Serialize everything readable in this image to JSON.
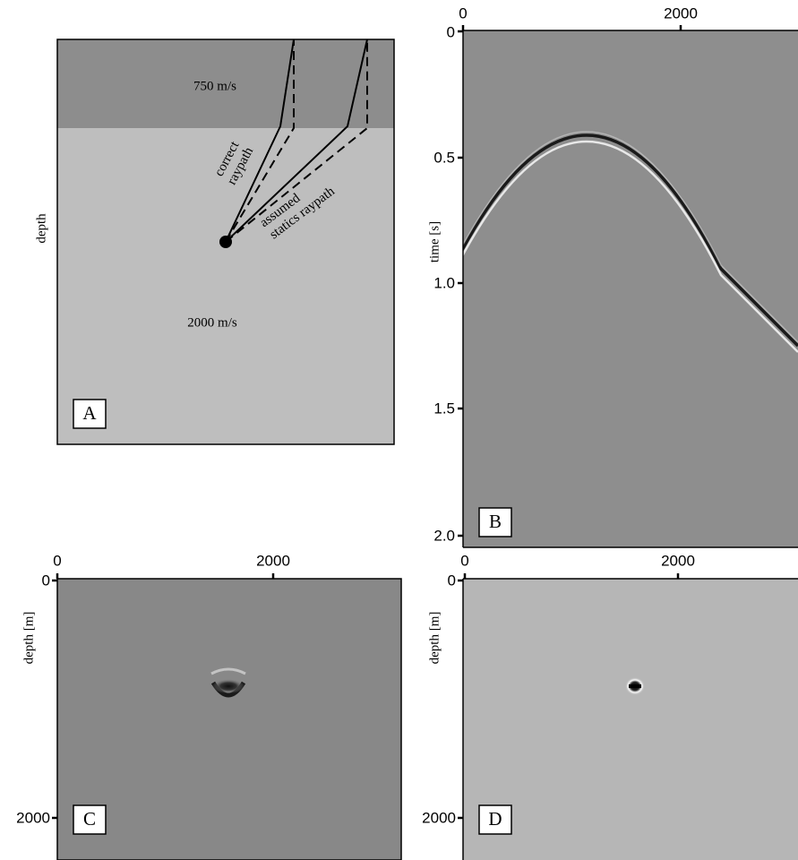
{
  "panel_a": {
    "label": "A",
    "layer_top": "750 m/s",
    "layer_bottom": "2000 m/s",
    "axis_label": "depth",
    "ray_label_correct": [
      "correct",
      "raypath"
    ],
    "ray_label_assumed": [
      "assumed",
      "statics raypath"
    ]
  },
  "panel_b": {
    "label": "B",
    "axis_label": "time [s]",
    "top_ticks": [
      "0",
      "2000"
    ],
    "left_ticks": [
      "0",
      "0.5",
      "1.0",
      "1.5",
      "2.0"
    ]
  },
  "panel_c": {
    "label": "C",
    "axis_label": "depth [m]",
    "top_ticks": [
      "0",
      "2000"
    ],
    "left_ticks": [
      "0",
      "2000"
    ]
  },
  "panel_d": {
    "label": "D",
    "axis_label": "depth [m]",
    "top_ticks": [
      "0",
      "2000"
    ],
    "left_ticks": [
      "0",
      "2000"
    ]
  }
}
